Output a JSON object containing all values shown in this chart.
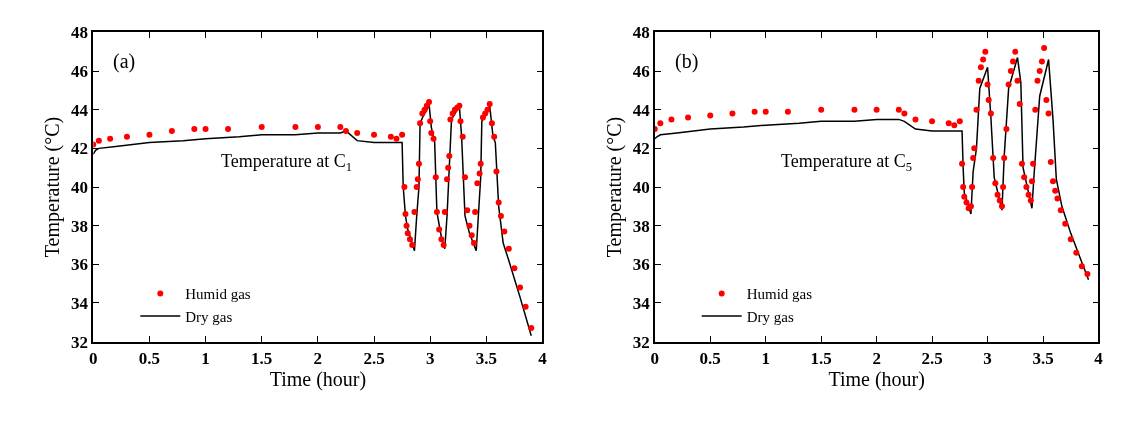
{
  "chart_data": [
    {
      "type": "line",
      "xlabel": "Time (hour)",
      "ylabel": "Temperature (°C)",
      "xlim": [
        0,
        4
      ],
      "ylim": [
        32,
        48
      ],
      "xticks": [
        0,
        0.5,
        1,
        1.5,
        2,
        2.5,
        3,
        3.5,
        4
      ],
      "yticks": [
        32,
        34,
        36,
        38,
        40,
        42,
        44,
        46,
        48
      ],
      "legend": "bottom left",
      "annotations": [
        "(a)",
        "Temperature at C$_{1}$"
      ],
      "series": [
        {
          "name": "Humid gas",
          "type": "scatter",
          "marker": "circle",
          "color": "#ff0000",
          "x": [
            0,
            0.05,
            0.15,
            0.3,
            0.5,
            0.7,
            0.9,
            1.0,
            1.2,
            1.5,
            1.8,
            2.0,
            2.2,
            2.25,
            2.35,
            2.5,
            2.65,
            2.7,
            2.75,
            2.77,
            2.78,
            2.79,
            2.8,
            2.82,
            2.84,
            2.86,
            2.88,
            2.89,
            2.9,
            2.91,
            2.93,
            2.95,
            2.97,
            2.99,
            3.0,
            3.01,
            3.03,
            3.05,
            3.06,
            3.08,
            3.1,
            3.12,
            3.13,
            3.15,
            3.16,
            3.17,
            3.18,
            3.2,
            3.22,
            3.24,
            3.26,
            3.27,
            3.29,
            3.31,
            3.33,
            3.35,
            3.37,
            3.39,
            3.4,
            3.42,
            3.44,
            3.45,
            3.47,
            3.49,
            3.51,
            3.53,
            3.55,
            3.57,
            3.59,
            3.61,
            3.63,
            3.66,
            3.7,
            3.75,
            3.8,
            3.85,
            3.9
          ],
          "values": [
            42.2,
            42.4,
            42.5,
            42.6,
            42.7,
            42.9,
            43.0,
            43.0,
            43.0,
            43.1,
            43.1,
            43.1,
            43.1,
            42.9,
            42.8,
            42.7,
            42.6,
            42.5,
            42.7,
            40.0,
            38.6,
            38.0,
            37.6,
            37.3,
            37.0,
            38.7,
            40.0,
            40.4,
            41.2,
            43.3,
            43.8,
            44.0,
            44.2,
            44.4,
            43.4,
            42.8,
            42.5,
            40.5,
            38.7,
            37.8,
            37.3,
            37.0,
            38.7,
            40.4,
            41.0,
            41.6,
            43.5,
            43.8,
            44.0,
            44.1,
            44.2,
            43.4,
            42.6,
            40.5,
            38.8,
            38.0,
            37.5,
            37.1,
            38.7,
            40.2,
            40.7,
            41.2,
            43.6,
            43.8,
            44.0,
            44.3,
            43.3,
            42.6,
            40.8,
            39.2,
            38.5,
            37.7,
            36.8,
            35.8,
            34.8,
            33.8,
            32.7
          ]
        },
        {
          "name": "Dry gas",
          "color": "#000000",
          "x": [
            0,
            0.02,
            0.05,
            0.2,
            0.5,
            0.8,
            1.0,
            1.3,
            1.5,
            1.8,
            2.0,
            2.2,
            2.25,
            2.35,
            2.5,
            2.75,
            2.76,
            2.78,
            2.8,
            2.83,
            2.86,
            2.88,
            2.9,
            2.91,
            2.94,
            2.97,
            2.99,
            3.01,
            3.04,
            3.06,
            3.1,
            3.13,
            3.15,
            3.17,
            3.19,
            3.22,
            3.26,
            3.28,
            3.31,
            3.35,
            3.41,
            3.43,
            3.45,
            3.46,
            3.5,
            3.53,
            3.56,
            3.58,
            3.61,
            3.65,
            3.7,
            3.8,
            3.9
          ],
          "values": [
            41.7,
            41.9,
            42.0,
            42.1,
            42.3,
            42.4,
            42.5,
            42.6,
            42.7,
            42.7,
            42.8,
            42.8,
            42.9,
            42.4,
            42.3,
            42.3,
            40.0,
            38.5,
            37.8,
            37.3,
            36.7,
            38.5,
            40.0,
            43.3,
            43.7,
            44.0,
            44.3,
            43.1,
            42.3,
            38.7,
            37.4,
            36.8,
            38.5,
            41.0,
            43.5,
            43.8,
            44.2,
            42.6,
            38.5,
            37.6,
            36.7,
            38.6,
            40.5,
            43.4,
            43.8,
            44.2,
            42.6,
            42.3,
            39.0,
            37.1,
            36.2,
            34.3,
            32.3
          ]
        }
      ]
    },
    {
      "type": "line",
      "xlabel": "Time (hour)",
      "ylabel": "Temperature (°C)",
      "xlim": [
        0,
        4
      ],
      "ylim": [
        32,
        48
      ],
      "xticks": [
        0,
        0.5,
        1,
        1.5,
        2,
        2.5,
        3,
        3.5,
        4
      ],
      "yticks": [
        32,
        34,
        36,
        38,
        40,
        42,
        44,
        46,
        48
      ],
      "legend": "bottom left",
      "annotations": [
        "(b)",
        "Temperature at C$_{5}$"
      ],
      "series": [
        {
          "name": "Humid gas",
          "type": "scatter",
          "marker": "circle",
          "color": "#ff0000",
          "x": [
            0,
            0.05,
            0.15,
            0.3,
            0.5,
            0.7,
            0.9,
            1.0,
            1.2,
            1.5,
            1.8,
            2.0,
            2.2,
            2.25,
            2.35,
            2.5,
            2.65,
            2.7,
            2.75,
            2.77,
            2.78,
            2.79,
            2.81,
            2.83,
            2.85,
            2.86,
            2.87,
            2.88,
            2.9,
            2.92,
            2.94,
            2.96,
            2.98,
            3.0,
            3.01,
            3.03,
            3.05,
            3.07,
            3.09,
            3.11,
            3.13,
            3.14,
            3.15,
            3.17,
            3.19,
            3.21,
            3.23,
            3.25,
            3.27,
            3.29,
            3.31,
            3.33,
            3.35,
            3.37,
            3.39,
            3.4,
            3.41,
            3.43,
            3.45,
            3.47,
            3.49,
            3.51,
            3.53,
            3.55,
            3.57,
            3.59,
            3.61,
            3.63,
            3.66,
            3.7,
            3.75,
            3.8,
            3.85,
            3.9
          ],
          "values": [
            43.0,
            43.3,
            43.5,
            43.6,
            43.7,
            43.8,
            43.9,
            43.9,
            43.9,
            44.0,
            44.0,
            44.0,
            44.0,
            43.8,
            43.5,
            43.4,
            43.3,
            43.2,
            43.4,
            41.2,
            40.0,
            39.5,
            39.2,
            38.9,
            39.0,
            40.0,
            41.5,
            42.0,
            44.0,
            45.5,
            46.2,
            46.6,
            47.0,
            45.3,
            44.5,
            43.8,
            41.5,
            40.2,
            39.6,
            39.3,
            39.0,
            40.0,
            41.5,
            43.0,
            45.3,
            46.0,
            46.5,
            47.0,
            45.5,
            44.3,
            41.2,
            40.5,
            40.0,
            39.6,
            39.3,
            40.3,
            41.2,
            44.0,
            45.5,
            46.0,
            46.5,
            47.2,
            44.5,
            43.8,
            41.3,
            40.3,
            39.8,
            39.4,
            38.8,
            38.1,
            37.3,
            36.6,
            35.9,
            35.5
          ]
        },
        {
          "name": "Dry gas",
          "color": "#000000",
          "x": [
            0,
            0.02,
            0.05,
            0.2,
            0.5,
            0.8,
            1.0,
            1.3,
            1.5,
            1.8,
            2.0,
            2.2,
            2.25,
            2.35,
            2.5,
            2.77,
            2.78,
            2.79,
            2.85,
            2.87,
            2.9,
            2.93,
            3.0,
            3.03,
            3.06,
            3.13,
            3.15,
            3.19,
            3.27,
            3.3,
            3.32,
            3.4,
            3.42,
            3.47,
            3.55,
            3.59,
            3.62,
            3.67,
            3.75,
            3.91
          ],
          "values": [
            42.5,
            42.6,
            42.7,
            42.8,
            43.0,
            43.1,
            43.2,
            43.3,
            43.4,
            43.4,
            43.5,
            43.5,
            43.4,
            43.0,
            42.9,
            42.9,
            41.0,
            39.7,
            38.6,
            40.8,
            42.0,
            45.1,
            46.2,
            43.6,
            40.5,
            38.8,
            41.6,
            45.1,
            46.7,
            45.4,
            41.0,
            38.9,
            40.7,
            44.7,
            46.6,
            43.5,
            40.4,
            39.0,
            37.6,
            35.2
          ]
        }
      ]
    }
  ]
}
